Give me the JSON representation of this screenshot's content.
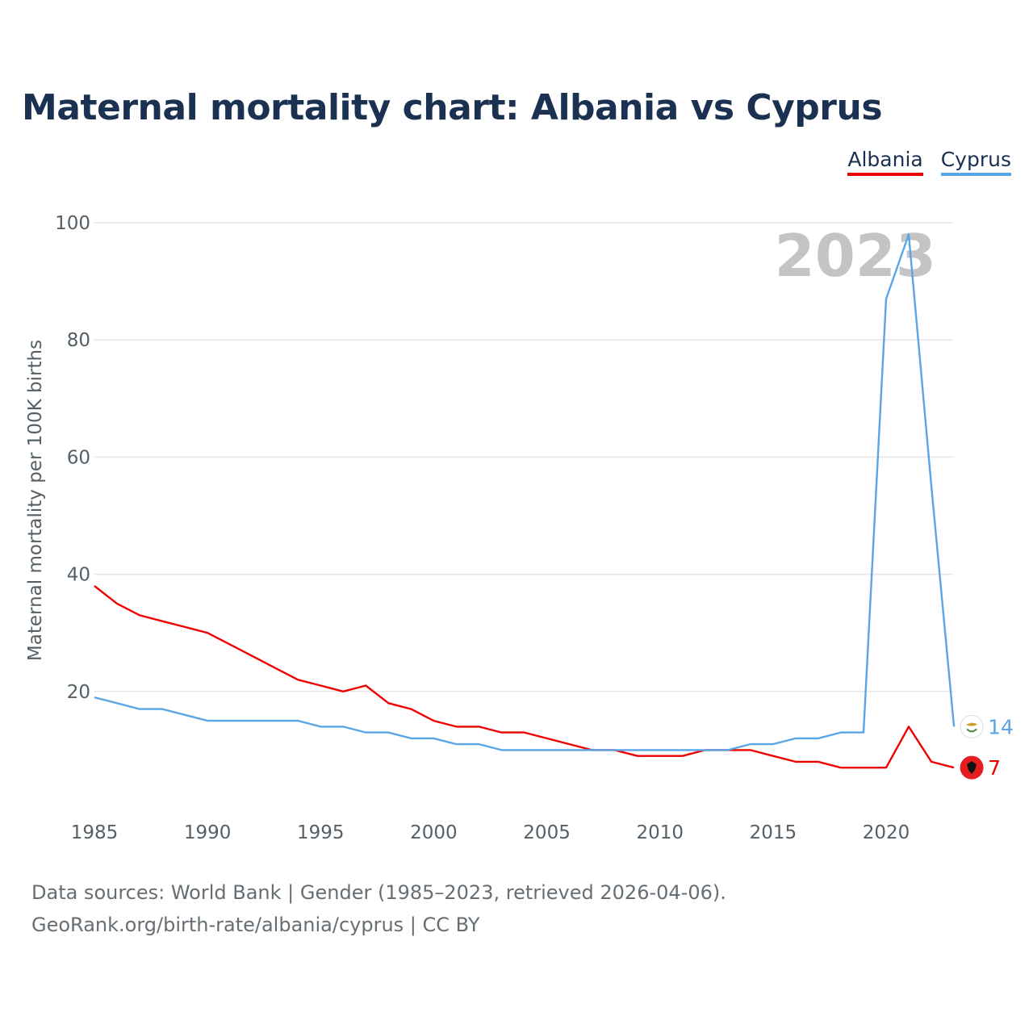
{
  "title": "Maternal mortality chart: Albania vs Cyprus",
  "legend": {
    "albania": "Albania",
    "cyprus": "Cyprus"
  },
  "watermark_year": "2023",
  "source": {
    "line1": "Data sources: World Bank | Gender (1985–2023, retrieved 2026-04-06).",
    "line2": "GeoRank.org/birth-rate/albania/cyprus | CC BY"
  },
  "chart_data": {
    "type": "line",
    "title": "Maternal mortality chart: Albania vs Cyprus",
    "xlabel": "",
    "ylabel": "Maternal mortality per 100K births",
    "xlim": [
      1985,
      2023
    ],
    "ylim": [
      0,
      100
    ],
    "x_ticks": [
      1985,
      1990,
      1995,
      2000,
      2005,
      2010,
      2015,
      2020
    ],
    "y_ticks": [
      20,
      40,
      60,
      80,
      100
    ],
    "legend_position": "top-right",
    "x": [
      1985,
      1986,
      1987,
      1988,
      1989,
      1990,
      1991,
      1992,
      1993,
      1994,
      1995,
      1996,
      1997,
      1998,
      1999,
      2000,
      2001,
      2002,
      2003,
      2004,
      2005,
      2006,
      2007,
      2008,
      2009,
      2010,
      2011,
      2012,
      2013,
      2014,
      2015,
      2016,
      2017,
      2018,
      2019,
      2020,
      2021,
      2022,
      2023
    ],
    "series": [
      {
        "name": "Albania",
        "color": "#ef0000",
        "end_label": "7",
        "values": [
          38,
          35,
          33,
          32,
          31,
          30,
          28,
          26,
          24,
          22,
          21,
          20,
          21,
          18,
          17,
          15,
          14,
          14,
          13,
          13,
          12,
          11,
          10,
          10,
          9,
          9,
          9,
          10,
          10,
          10,
          9,
          8,
          8,
          7,
          7,
          7,
          14,
          8,
          7
        ]
      },
      {
        "name": "Cyprus",
        "color": "#5aa5e6",
        "end_label": "14",
        "values": [
          19,
          18,
          17,
          17,
          16,
          15,
          15,
          15,
          15,
          15,
          14,
          14,
          13,
          13,
          12,
          12,
          11,
          11,
          10,
          10,
          10,
          10,
          10,
          10,
          10,
          10,
          10,
          10,
          10,
          11,
          11,
          12,
          12,
          13,
          13,
          87,
          98,
          55,
          14
        ]
      }
    ]
  }
}
